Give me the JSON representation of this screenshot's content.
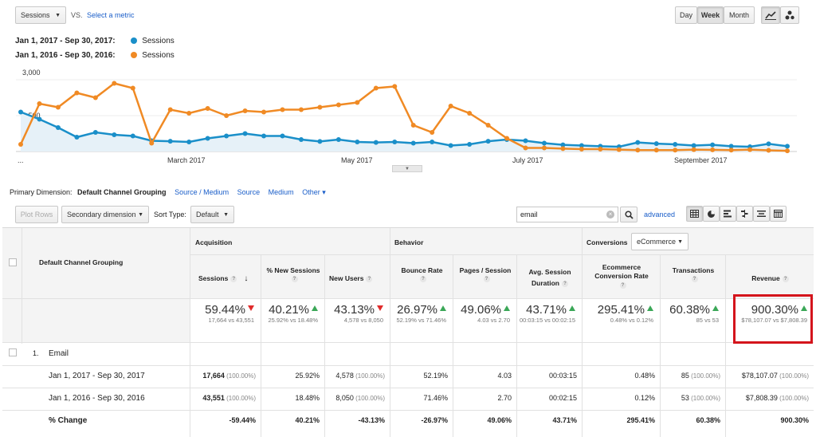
{
  "top": {
    "metric": "Sessions",
    "vs": "VS.",
    "select_metric": "Select a metric",
    "granularity": [
      "Day",
      "Week",
      "Month"
    ],
    "active_granularity": "Week"
  },
  "legend": [
    {
      "range": "Jan 1, 2017 - Sep 30, 2017:",
      "name": "Sessions",
      "color": "#1a8fc9"
    },
    {
      "range": "Jan 1, 2016 - Sep 30, 2016:",
      "name": "Sessions",
      "color": "#f08a24"
    }
  ],
  "chart_data": {
    "type": "line",
    "y_tick_labels": [
      "3,000",
      "1,500"
    ],
    "ylim": [
      0,
      3000
    ],
    "x_tick_labels": [
      "...",
      "March 2017",
      "May 2017",
      "July 2017",
      "September 2017"
    ],
    "series": [
      {
        "color": "#1a8fc9",
        "values": [
          1650,
          1350,
          1000,
          600,
          800,
          700,
          650,
          450,
          430,
          400,
          550,
          650,
          750,
          650,
          650,
          500,
          420,
          500,
          400,
          380,
          400,
          350,
          400,
          250,
          300,
          430,
          500,
          450,
          350,
          280,
          250,
          220,
          200,
          380,
          330,
          300,
          250,
          280,
          220,
          200,
          320,
          220
        ]
      },
      {
        "color": "#f08a24",
        "values": [
          300,
          2000,
          1850,
          2450,
          2250,
          2850,
          2650,
          350,
          1750,
          1600,
          1800,
          1500,
          1700,
          1650,
          1750,
          1750,
          1850,
          1950,
          2050,
          2650,
          2720,
          1100,
          800,
          1900,
          1600,
          1100,
          550,
          150,
          150,
          120,
          100,
          100,
          80,
          60,
          60,
          60,
          80,
          70,
          60,
          80,
          50,
          30
        ]
      }
    ]
  },
  "dimension": {
    "label": "Primary Dimension:",
    "active": "Default Channel Grouping",
    "options": [
      "Source / Medium",
      "Source",
      "Medium",
      "Other ▾"
    ]
  },
  "toolbar": {
    "plot_rows": "Plot Rows",
    "secondary_dimension": "Secondary dimension",
    "sort_type_label": "Sort Type:",
    "sort_type": "Default",
    "search_value": "email",
    "advanced": "advanced"
  },
  "table": {
    "dim_header": "Default Channel Grouping",
    "groups": {
      "acquisition": "Acquisition",
      "behavior": "Behavior",
      "conversions": "Conversions",
      "ecommerce": "eCommerce"
    },
    "columns": [
      "Sessions",
      "% New Sessions",
      "New Users",
      "Bounce Rate",
      "Pages / Session",
      "Avg. Session Duration",
      "Ecommerce Conversion Rate",
      "Transactions",
      "Revenue"
    ],
    "summary": [
      {
        "value": "59.44%",
        "dir": "down",
        "sub": "17,664 vs 43,551"
      },
      {
        "value": "40.21%",
        "dir": "up",
        "sub": "25.92% vs 18.48%"
      },
      {
        "value": "43.13%",
        "dir": "down",
        "sub": "4,578 vs 8,050"
      },
      {
        "value": "26.97%",
        "dir": "up",
        "sub": "52.19% vs 71.46%"
      },
      {
        "value": "49.06%",
        "dir": "up",
        "sub": "4.03 vs 2.70"
      },
      {
        "value": "43.71%",
        "dir": "up",
        "sub": "00:03:15 vs 00:02:15"
      },
      {
        "value": "295.41%",
        "dir": "up",
        "sub": "0.48% vs 0.12%"
      },
      {
        "value": "60.38%",
        "dir": "up",
        "sub": "85 vs 53"
      },
      {
        "value": "900.30%",
        "dir": "up",
        "sub": "$78,107.07 vs $7,808.39"
      }
    ],
    "row_index": "1.",
    "row_name": "Email",
    "rows": [
      {
        "label": "Jan 1, 2017 - Sep 30, 2017",
        "cells": [
          "17,664",
          "25.92%",
          "4,578",
          "52.19%",
          "4.03",
          "00:03:15",
          "0.48%",
          "85",
          "$78,107.07"
        ],
        "pcts": [
          "(100.00%)",
          "",
          "(100.00%)",
          "",
          "",
          "",
          "",
          "(100.00%)",
          "(100.00%)"
        ]
      },
      {
        "label": "Jan 1, 2016 - Sep 30, 2016",
        "cells": [
          "43,551",
          "18.48%",
          "8,050",
          "71.46%",
          "2.70",
          "00:02:15",
          "0.12%",
          "53",
          "$7,808.39"
        ],
        "pcts": [
          "(100.00%)",
          "",
          "(100.00%)",
          "",
          "",
          "",
          "",
          "(100.00%)",
          "(100.00%)"
        ]
      },
      {
        "label": "% Change",
        "cells": [
          "-59.44%",
          "40.21%",
          "-43.13%",
          "-26.97%",
          "49.06%",
          "43.71%",
          "295.41%",
          "60.38%",
          "900.30%"
        ],
        "pcts": [
          "",
          "",
          "",
          "",
          "",
          "",
          "",
          "",
          ""
        ]
      }
    ]
  }
}
